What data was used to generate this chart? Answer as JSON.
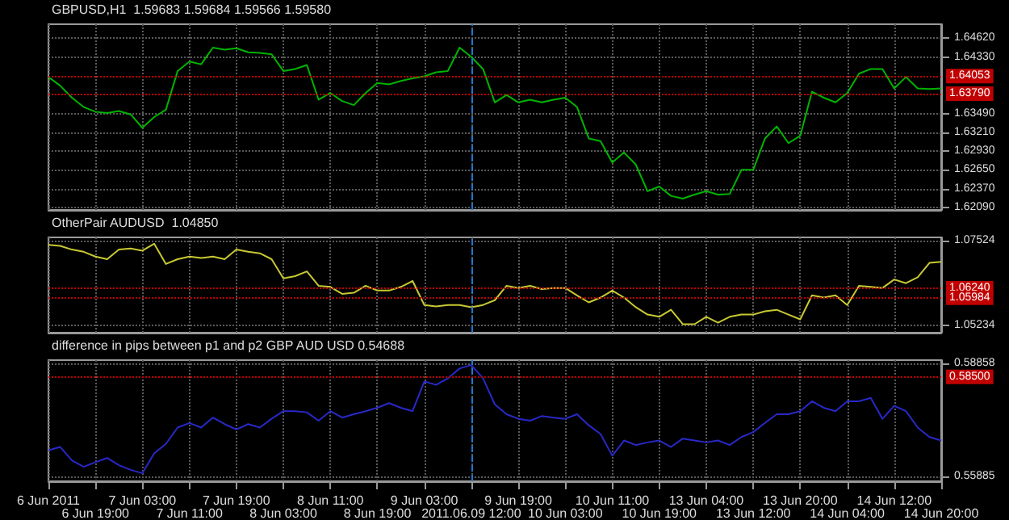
{
  "chart_data": [
    {
      "type": "line",
      "title": "GBPUSD,H1  1.59683 1.59684 1.59566 1.59580",
      "tick_labels": "y",
      "grid": true,
      "categories": [
        "6 Jun 2011",
        null,
        null,
        null,
        "6 Jun 19:00",
        null,
        null,
        null,
        "7 Jun 03:00",
        null,
        null,
        null,
        "7 Jun 11:00",
        null,
        null,
        null,
        "7 Jun 19:00",
        null,
        null,
        null,
        "8 Jun 03:00",
        null,
        null,
        null,
        "8 Jun 11:00",
        null,
        null,
        null,
        "8 Jun 19:00",
        null,
        null,
        null,
        "9 Jun 03:00",
        null,
        null,
        null,
        "2011.06.09 12:00",
        null,
        null,
        null,
        "9 Jun 19:00",
        null,
        null,
        null,
        "10 Jun 03:00",
        null,
        null,
        null,
        "10 Jun 11:00",
        null,
        null,
        null,
        "10 Jun 19:00",
        null,
        null,
        null,
        "13 Jun 04:00",
        null,
        null,
        null,
        "13 Jun 12:00",
        null,
        null,
        null,
        "13 Jun 20:00",
        null,
        null,
        null,
        "14 Jun 04:00",
        null,
        null,
        null,
        "14 Jun 12:00",
        null,
        null,
        null,
        "14 Jun 20:00"
      ],
      "ylim": [
        1.6205,
        1.6483
      ],
      "yticks": [
        {
          "value": 1.6209,
          "label": "1.62090"
        },
        {
          "value": 1.6237,
          "label": "1.62370"
        },
        {
          "value": 1.6265,
          "label": "1.62650"
        },
        {
          "value": 1.6293,
          "label": "1.62930"
        },
        {
          "value": 1.6321,
          "label": "1.63210"
        },
        {
          "value": 1.6349,
          "label": "1.63490"
        },
        {
          "value": 1.6433,
          "label": "1.64330"
        },
        {
          "value": 1.6462,
          "label": "1.64620"
        }
      ],
      "ref_lines": [
        {
          "axis": "y",
          "value": 1.64053,
          "label": "1.64053",
          "color": "#c00000",
          "line_style": "dotted"
        },
        {
          "axis": "y",
          "value": 1.6379,
          "label": "1.63790",
          "color": "#c00000",
          "line_style": "dotted"
        },
        {
          "axis": "x",
          "value": "2011.06.09 12:00",
          "color": "#1e78d2",
          "line_style": "dashed"
        }
      ],
      "series": [
        {
          "color": "#00b400",
          "values": [
            1.6404,
            1.6391,
            1.6373,
            1.6359,
            1.6352,
            1.635,
            1.6353,
            1.6348,
            1.6328,
            1.6344,
            1.6355,
            1.6413,
            1.6427,
            1.6423,
            1.6448,
            1.6445,
            1.6447,
            1.6441,
            1.644,
            1.6438,
            1.6413,
            1.6416,
            1.6422,
            1.637,
            1.638,
            1.6368,
            1.6362,
            1.638,
            1.6395,
            1.6393,
            1.6398,
            1.6402,
            1.6405,
            1.6411,
            1.6413,
            1.6448,
            1.6434,
            1.6416,
            1.6366,
            1.6377,
            1.6366,
            1.637,
            1.6366,
            1.637,
            1.6373,
            1.6359,
            1.6312,
            1.6308,
            1.6276,
            1.6291,
            1.6273,
            1.6233,
            1.624,
            1.6226,
            1.6222,
            1.6228,
            1.6233,
            1.6228,
            1.6229,
            1.6265,
            1.6265,
            1.6312,
            1.633,
            1.6305,
            1.6316,
            1.6382,
            1.6373,
            1.6366,
            1.638,
            1.6409,
            1.6416,
            1.6416,
            1.6387,
            1.6404,
            1.6387,
            1.6386,
            1.6387
          ]
        }
      ]
    },
    {
      "type": "line",
      "title": "OtherPair AUDUSD  1.04850",
      "tick_labels": "y",
      "grid": true,
      "categories": [
        "6 Jun 2011",
        null,
        null,
        null,
        "6 Jun 19:00",
        null,
        null,
        null,
        "7 Jun 03:00",
        null,
        null,
        null,
        "7 Jun 11:00",
        null,
        null,
        null,
        "7 Jun 19:00",
        null,
        null,
        null,
        "8 Jun 03:00",
        null,
        null,
        null,
        "8 Jun 11:00",
        null,
        null,
        null,
        "8 Jun 19:00",
        null,
        null,
        null,
        "9 Jun 03:00",
        null,
        null,
        null,
        "2011.06.09 12:00",
        null,
        null,
        null,
        "9 Jun 19:00",
        null,
        null,
        null,
        "10 Jun 03:00",
        null,
        null,
        null,
        "10 Jun 11:00",
        null,
        null,
        null,
        "10 Jun 19:00",
        null,
        null,
        null,
        "13 Jun 04:00",
        null,
        null,
        null,
        "13 Jun 12:00",
        null,
        null,
        null,
        "13 Jun 20:00",
        null,
        null,
        null,
        "14 Jun 04:00",
        null,
        null,
        null,
        "14 Jun 12:00",
        null,
        null,
        null,
        "14 Jun 20:00"
      ],
      "ylim": [
        1.0504,
        1.0762
      ],
      "yticks": [
        1.05234,
        1.07524
      ],
      "ref_lines": [
        {
          "axis": "y",
          "value": 1.0624,
          "label": "1.06240",
          "color": "#c00000",
          "line_style": "dotted"
        },
        {
          "axis": "y",
          "value": 1.05984,
          "label": "1.05984",
          "color": "#c00000",
          "line_style": "dotted"
        },
        {
          "axis": "x",
          "value": "2011.06.09 12:00",
          "color": "#1e78d2",
          "line_style": "dashed"
        }
      ],
      "series": [
        {
          "color": "#c8c832",
          "values": [
            1.0742,
            1.0739,
            1.0729,
            1.0723,
            1.071,
            1.0703,
            1.0729,
            1.0732,
            1.0726,
            1.0745,
            1.069,
            1.0703,
            1.071,
            1.0706,
            1.071,
            1.0703,
            1.0729,
            1.0723,
            1.0719,
            1.0703,
            1.0651,
            1.0657,
            1.067,
            1.0631,
            1.0628,
            1.0609,
            1.0612,
            1.0631,
            1.0618,
            1.0618,
            1.0628,
            1.0644,
            1.0579,
            1.0575,
            1.0579,
            1.0579,
            1.0573,
            1.0579,
            1.0592,
            1.0631,
            1.0625,
            1.0631,
            1.0622,
            1.0625,
            1.0625,
            1.0605,
            1.0586,
            1.0599,
            1.0618,
            1.0599,
            1.0573,
            1.0553,
            1.0547,
            1.0566,
            1.0527,
            1.0527,
            1.0547,
            1.0531,
            1.0547,
            1.0553,
            1.0553,
            1.0562,
            1.0566,
            1.0553,
            1.054,
            1.0605,
            1.0599,
            1.0605,
            1.0579,
            1.0631,
            1.0628,
            1.0625,
            1.0648,
            1.0638,
            1.0654,
            1.0693,
            1.0696
          ]
        }
      ]
    },
    {
      "type": "line",
      "title": "difference in pips between p1 and p2 GBP AUD USD 0.54688",
      "grid": true,
      "categories": [
        "6 Jun 2011",
        null,
        null,
        null,
        "6 Jun 19:00",
        null,
        null,
        null,
        "7 Jun 03:00",
        null,
        null,
        null,
        "7 Jun 11:00",
        null,
        null,
        null,
        "7 Jun 19:00",
        null,
        null,
        null,
        "8 Jun 03:00",
        null,
        null,
        null,
        "8 Jun 11:00",
        null,
        null,
        null,
        "8 Jun 19:00",
        null,
        null,
        null,
        "9 Jun 03:00",
        null,
        null,
        null,
        "2011.06.09 12:00",
        null,
        null,
        null,
        "9 Jun 19:00",
        null,
        null,
        null,
        "10 Jun 03:00",
        null,
        null,
        null,
        "10 Jun 11:00",
        null,
        null,
        null,
        "10 Jun 19:00",
        null,
        null,
        null,
        "13 Jun 04:00",
        null,
        null,
        null,
        "13 Jun 12:00",
        null,
        null,
        null,
        "13 Jun 20:00",
        null,
        null,
        null,
        "14 Jun 04:00",
        null,
        null,
        null,
        "14 Jun 12:00",
        null,
        null,
        null,
        "14 Jun 20:00"
      ],
      "ylim": [
        0.5576,
        0.5894
      ],
      "yticks": [
        0.55885,
        0.58858
      ],
      "ref_lines": [
        {
          "axis": "y",
          "value": 0.585,
          "label": "0.58500",
          "color": "#c00000",
          "line_style": "dotted"
        },
        {
          "axis": "x",
          "value": "2011.06.09 12:00",
          "color": "#1e78d2",
          "line_style": "dashed"
        }
      ],
      "series": [
        {
          "color": "#2828c8",
          "values": [
            0.5657,
            0.5666,
            0.5631,
            0.5614,
            0.5626,
            0.5637,
            0.5618,
            0.5606,
            0.5597,
            0.5649,
            0.5674,
            0.5717,
            0.5729,
            0.5717,
            0.5743,
            0.5726,
            0.5712,
            0.5726,
            0.5717,
            0.574,
            0.576,
            0.576,
            0.5757,
            0.5735,
            0.576,
            0.5743,
            0.5752,
            0.576,
            0.5769,
            0.5781,
            0.5769,
            0.576,
            0.5838,
            0.5829,
            0.5846,
            0.5872,
            0.5881,
            0.5846,
            0.5778,
            0.5752,
            0.574,
            0.5735,
            0.5747,
            0.5743,
            0.574,
            0.5752,
            0.5723,
            0.57,
            0.5643,
            0.5683,
            0.5671,
            0.5678,
            0.5683,
            0.5666,
            0.5688,
            0.5683,
            0.5678,
            0.5683,
            0.5671,
            0.5692,
            0.5705,
            0.5729,
            0.5752,
            0.5752,
            0.576,
            0.5786,
            0.5769,
            0.576,
            0.5786,
            0.5786,
            0.5795,
            0.574,
            0.5774,
            0.576,
            0.5717,
            0.5692,
            0.5683
          ]
        }
      ]
    }
  ]
}
